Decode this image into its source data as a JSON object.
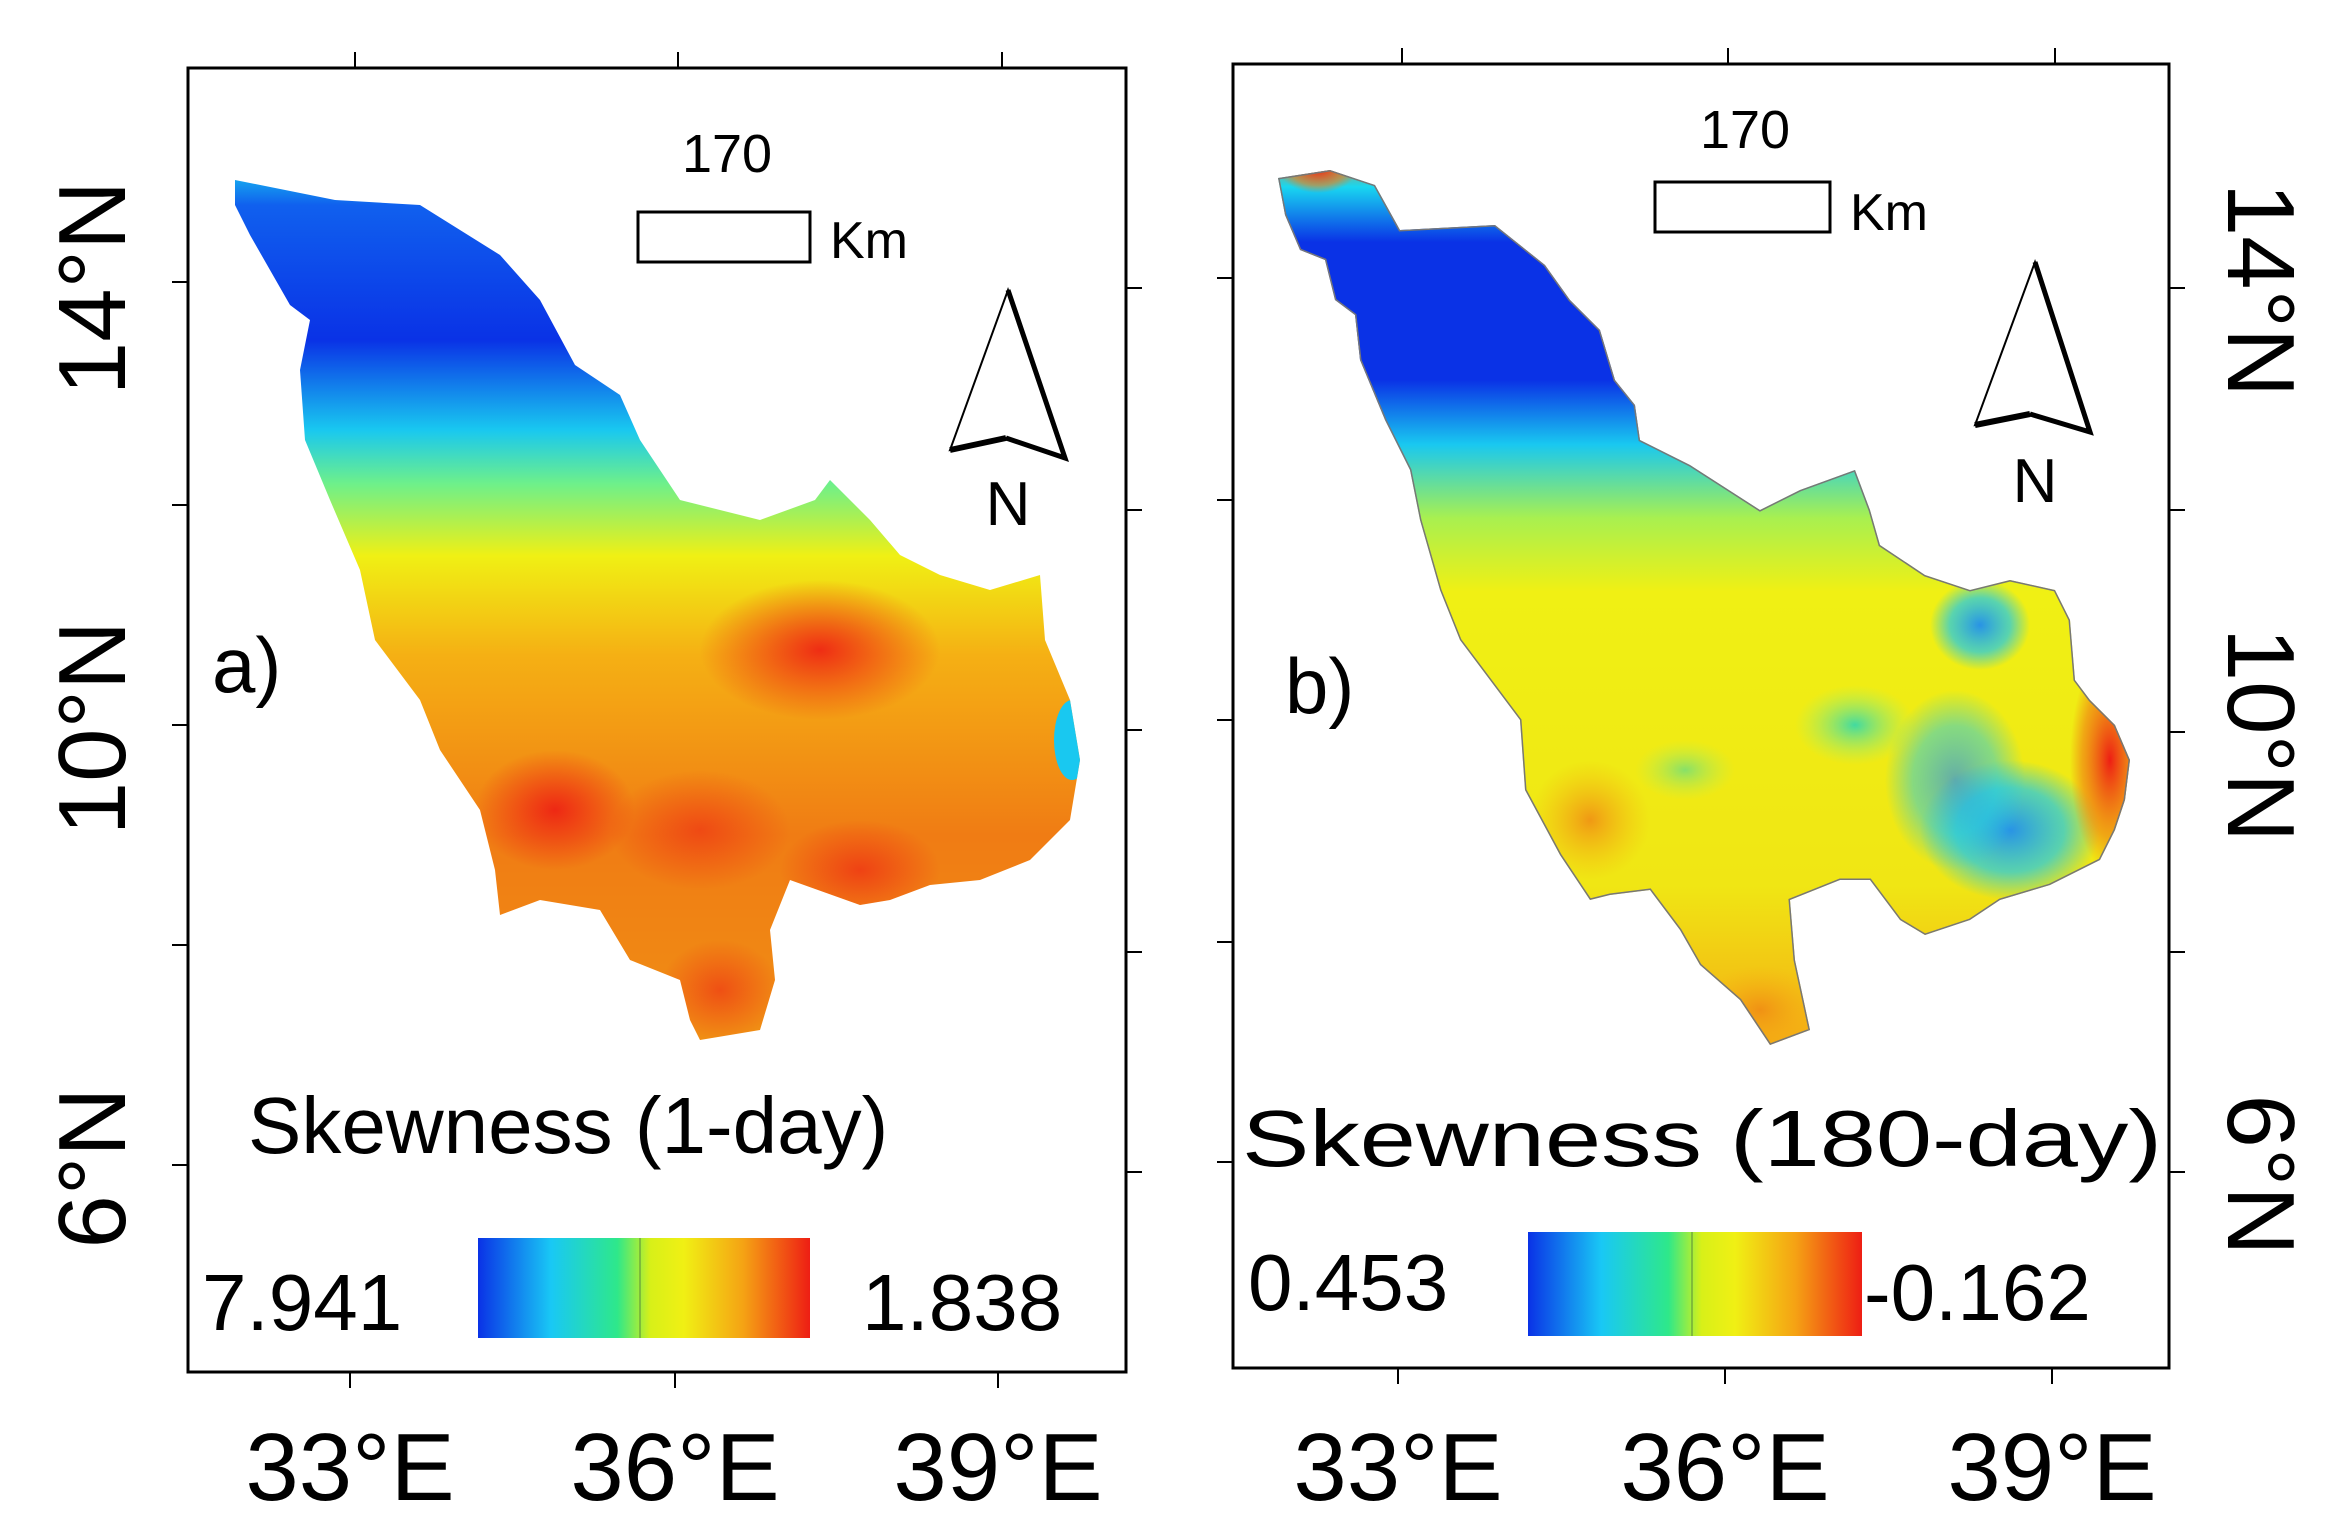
{
  "axes": {
    "x_labels": [
      "33°E",
      "36°E",
      "39°E"
    ],
    "y_labels": [
      "14°N",
      "10°N",
      "6°N"
    ]
  },
  "panels": [
    {
      "id": "a",
      "panel_label": "a)",
      "scale_value": "170",
      "scale_unit": "Km",
      "north": "N",
      "title": "Skewness (1-day)",
      "legend_high": "7.941",
      "legend_low": "1.838"
    },
    {
      "id": "b",
      "panel_label": "b)",
      "scale_value": "170",
      "scale_unit": "Km",
      "north": "N",
      "title": "Skewness (180-day)",
      "legend_high": "0.453",
      "legend_low": "-0.162"
    }
  ],
  "colors": {
    "blue": "#0a32e6",
    "cyan": "#19d7f0",
    "green": "#2ee88a",
    "yellow": "#f0f014",
    "orange": "#f5a214",
    "red": "#ee1e14"
  }
}
